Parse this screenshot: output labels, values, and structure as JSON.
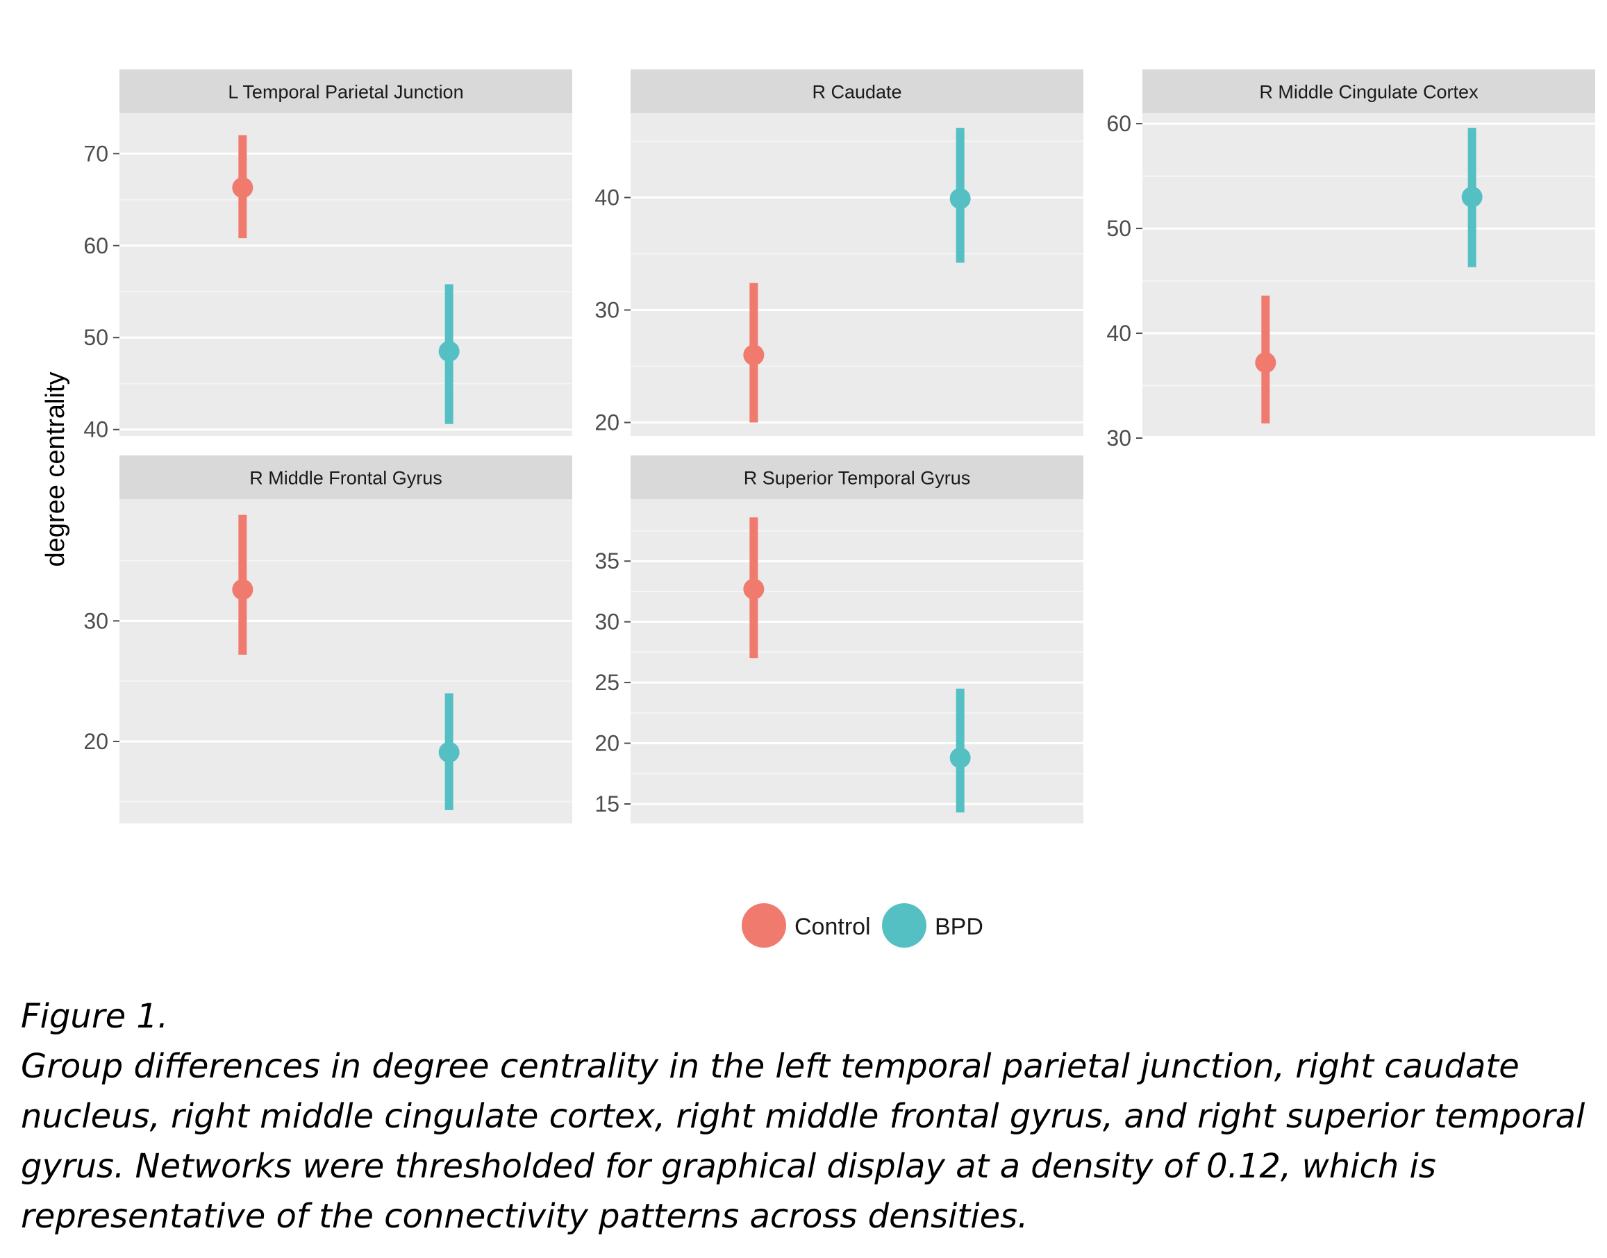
{
  "figure": {
    "ylabel": "degree centrality",
    "legend": {
      "placement": "bottom",
      "items": [
        {
          "label": "Control",
          "color": "#F07A6E"
        },
        {
          "label": "BPD",
          "color": "#55C0C4"
        }
      ]
    }
  },
  "chart_data": [
    {
      "type": "errorbar",
      "title": "L Temporal Parietal Junction",
      "categories": [
        "Control",
        "BPD"
      ],
      "values": [
        66.3,
        48.5
      ],
      "lower": [
        60.8,
        40.6
      ],
      "upper": [
        72.0,
        55.8
      ],
      "ylim": [
        39.3,
        74.4
      ],
      "yticks": [
        40,
        50,
        60,
        70
      ],
      "yminor": [
        45,
        55,
        65
      ]
    },
    {
      "type": "errorbar",
      "title": "R Caudate",
      "categories": [
        "Control",
        "BPD"
      ],
      "values": [
        26.0,
        39.9
      ],
      "lower": [
        20.0,
        34.2
      ],
      "upper": [
        32.4,
        46.2
      ],
      "ylim": [
        18.8,
        47.5
      ],
      "yticks": [
        20,
        30,
        40
      ],
      "yminor": [
        25,
        35,
        45
      ]
    },
    {
      "type": "errorbar",
      "title": "R Middle Cingulate Cortex",
      "categories": [
        "Control",
        "BPD"
      ],
      "values": [
        37.2,
        53.0
      ],
      "lower": [
        31.4,
        46.3
      ],
      "upper": [
        43.6,
        59.6
      ],
      "ylim": [
        30.2,
        61.0
      ],
      "yticks": [
        30,
        40,
        50,
        60
      ],
      "yminor": [
        35,
        45,
        55
      ]
    },
    {
      "type": "errorbar",
      "title": "R Middle Frontal Gyrus",
      "categories": [
        "Control",
        "BPD"
      ],
      "values": [
        32.6,
        19.1
      ],
      "lower": [
        27.2,
        14.3
      ],
      "upper": [
        38.8,
        24.0
      ],
      "ylim": [
        13.2,
        40.1
      ],
      "yticks": [
        20,
        30
      ],
      "yminor": [
        15,
        25,
        35
      ]
    },
    {
      "type": "errorbar",
      "title": "R Superior Temporal Gyrus",
      "categories": [
        "Control",
        "BPD"
      ],
      "values": [
        32.7,
        18.8
      ],
      "lower": [
        27.0,
        14.3
      ],
      "upper": [
        38.6,
        24.5
      ],
      "ylim": [
        13.4,
        40.1
      ],
      "yticks": [
        15,
        20,
        25,
        30,
        35
      ],
      "yminor": [
        17.5,
        22.5,
        27.5,
        32.5,
        37.5
      ]
    }
  ],
  "caption": {
    "heading": "Figure 1.",
    "lines": [
      "Group differences in degree centrality in the left temporal parietal junction, right caudate",
      "nucleus, right middle cingulate cortex, right middle frontal gyrus, and right superior temporal",
      "gyrus. Networks were thresholded for graphical display at a density of 0.12, which is",
      "representative of the connectivity patterns across densities."
    ]
  }
}
